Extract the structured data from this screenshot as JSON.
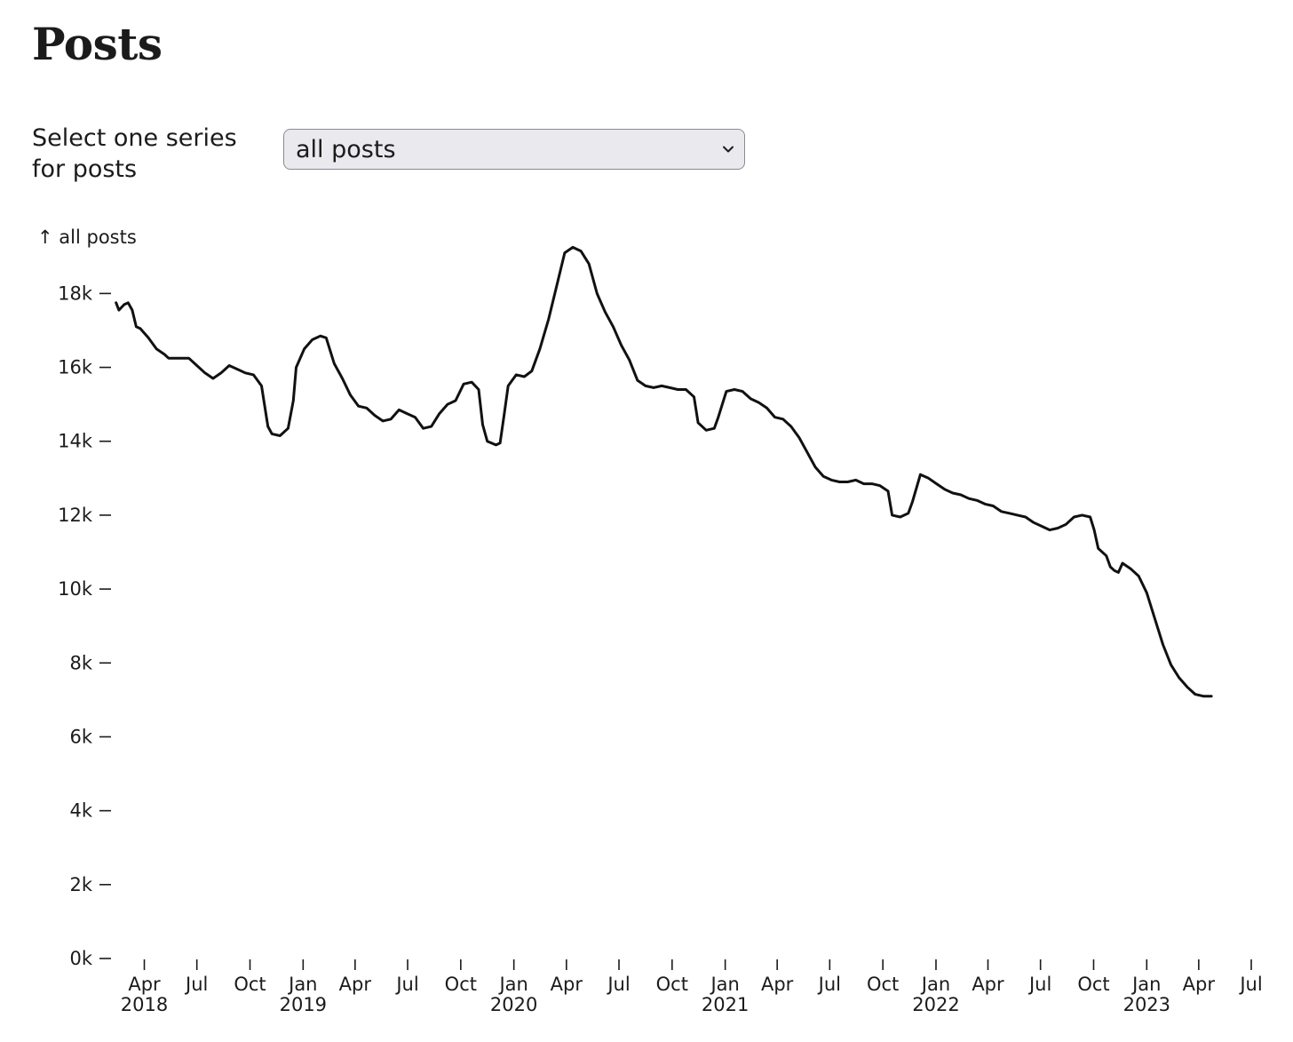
{
  "header": {
    "title": "Posts"
  },
  "controls": {
    "select_label": "Select one series for posts",
    "selected": "all posts"
  },
  "colors": {
    "line": "#111111",
    "text": "#1b1b1b",
    "select_bg": "#e9e9ee",
    "select_border": "#8a8a90"
  },
  "chart_data": {
    "type": "line",
    "ylabel": "↑ all posts",
    "ylim": [
      0,
      19500
    ],
    "yticks": [
      0,
      2000,
      4000,
      6000,
      8000,
      10000,
      12000,
      14000,
      16000,
      18000
    ],
    "ytick_labels": [
      "0k",
      "2k",
      "4k",
      "6k",
      "8k",
      "10k",
      "12k",
      "14k",
      "16k",
      "18k"
    ],
    "xlim": [
      "2018-02-10",
      "2023-07-01"
    ],
    "xticks": [
      {
        "date": "2018-04-01",
        "label": "Apr",
        "year": "2018"
      },
      {
        "date": "2018-07-01",
        "label": "Jul",
        "year": ""
      },
      {
        "date": "2018-10-01",
        "label": "Oct",
        "year": ""
      },
      {
        "date": "2019-01-01",
        "label": "Jan",
        "year": "2019"
      },
      {
        "date": "2019-04-01",
        "label": "Apr",
        "year": ""
      },
      {
        "date": "2019-07-01",
        "label": "Jul",
        "year": ""
      },
      {
        "date": "2019-10-01",
        "label": "Oct",
        "year": ""
      },
      {
        "date": "2020-01-01",
        "label": "Jan",
        "year": "2020"
      },
      {
        "date": "2020-04-01",
        "label": "Apr",
        "year": ""
      },
      {
        "date": "2020-07-01",
        "label": "Jul",
        "year": ""
      },
      {
        "date": "2020-10-01",
        "label": "Oct",
        "year": ""
      },
      {
        "date": "2021-01-01",
        "label": "Jan",
        "year": "2021"
      },
      {
        "date": "2021-04-01",
        "label": "Apr",
        "year": ""
      },
      {
        "date": "2021-07-01",
        "label": "Jul",
        "year": ""
      },
      {
        "date": "2021-10-01",
        "label": "Oct",
        "year": ""
      },
      {
        "date": "2022-01-01",
        "label": "Jan",
        "year": "2022"
      },
      {
        "date": "2022-04-01",
        "label": "Apr",
        "year": ""
      },
      {
        "date": "2022-07-01",
        "label": "Jul",
        "year": ""
      },
      {
        "date": "2022-10-01",
        "label": "Oct",
        "year": ""
      },
      {
        "date": "2023-01-01",
        "label": "Jan",
        "year": "2023"
      },
      {
        "date": "2023-04-01",
        "label": "Apr",
        "year": ""
      },
      {
        "date": "2023-07-01",
        "label": "Jul",
        "year": ""
      }
    ],
    "series": [
      {
        "color": "#111111",
        "points": [
          [
            "2018-02-11",
            17750
          ],
          [
            "2018-02-16",
            17550
          ],
          [
            "2018-02-25",
            17700
          ],
          [
            "2018-03-04",
            17750
          ],
          [
            "2018-03-11",
            17550
          ],
          [
            "2018-03-18",
            17100
          ],
          [
            "2018-03-25",
            17050
          ],
          [
            "2018-04-08",
            16800
          ],
          [
            "2018-04-22",
            16500
          ],
          [
            "2018-05-06",
            16350
          ],
          [
            "2018-05-13",
            16250
          ],
          [
            "2018-06-01",
            16250
          ],
          [
            "2018-06-17",
            16250
          ],
          [
            "2018-07-01",
            16050
          ],
          [
            "2018-07-15",
            15850
          ],
          [
            "2018-07-29",
            15700
          ],
          [
            "2018-08-12",
            15850
          ],
          [
            "2018-08-26",
            16050
          ],
          [
            "2018-09-09",
            15950
          ],
          [
            "2018-09-23",
            15850
          ],
          [
            "2018-10-07",
            15800
          ],
          [
            "2018-10-21",
            15500
          ],
          [
            "2018-11-01",
            14400
          ],
          [
            "2018-11-08",
            14200
          ],
          [
            "2018-11-22",
            14150
          ],
          [
            "2018-12-06",
            14350
          ],
          [
            "2018-12-15",
            15100
          ],
          [
            "2018-12-20",
            16000
          ],
          [
            "2019-01-03",
            16500
          ],
          [
            "2019-01-17",
            16750
          ],
          [
            "2019-01-31",
            16850
          ],
          [
            "2019-02-10",
            16800
          ],
          [
            "2019-02-24",
            16100
          ],
          [
            "2019-03-10",
            15700
          ],
          [
            "2019-03-24",
            15250
          ],
          [
            "2019-04-07",
            14950
          ],
          [
            "2019-04-21",
            14900
          ],
          [
            "2019-05-05",
            14700
          ],
          [
            "2019-05-19",
            14550
          ],
          [
            "2019-06-02",
            14600
          ],
          [
            "2019-06-16",
            14850
          ],
          [
            "2019-06-30",
            14750
          ],
          [
            "2019-07-14",
            14650
          ],
          [
            "2019-07-28",
            14350
          ],
          [
            "2019-08-11",
            14400
          ],
          [
            "2019-08-25",
            14750
          ],
          [
            "2019-09-08",
            15000
          ],
          [
            "2019-09-22",
            15100
          ],
          [
            "2019-10-06",
            15550
          ],
          [
            "2019-10-20",
            15600
          ],
          [
            "2019-11-01",
            15400
          ],
          [
            "2019-11-08",
            14450
          ],
          [
            "2019-11-16",
            14000
          ],
          [
            "2019-12-01",
            13900
          ],
          [
            "2019-12-08",
            13950
          ],
          [
            "2019-12-15",
            14700
          ],
          [
            "2019-12-22",
            15500
          ],
          [
            "2020-01-05",
            15800
          ],
          [
            "2020-01-19",
            15750
          ],
          [
            "2020-02-01",
            15900
          ],
          [
            "2020-02-15",
            16500
          ],
          [
            "2020-03-01",
            17300
          ],
          [
            "2020-03-15",
            18200
          ],
          [
            "2020-03-29",
            19100
          ],
          [
            "2020-04-12",
            19250
          ],
          [
            "2020-04-26",
            19150
          ],
          [
            "2020-05-10",
            18800
          ],
          [
            "2020-05-24",
            18000
          ],
          [
            "2020-06-07",
            17500
          ],
          [
            "2020-06-21",
            17100
          ],
          [
            "2020-07-05",
            16600
          ],
          [
            "2020-07-19",
            16200
          ],
          [
            "2020-08-02",
            15650
          ],
          [
            "2020-08-16",
            15500
          ],
          [
            "2020-08-30",
            15450
          ],
          [
            "2020-09-13",
            15500
          ],
          [
            "2020-09-27",
            15450
          ],
          [
            "2020-10-11",
            15400
          ],
          [
            "2020-10-25",
            15400
          ],
          [
            "2020-11-08",
            15200
          ],
          [
            "2020-11-15",
            14500
          ],
          [
            "2020-11-29",
            14300
          ],
          [
            "2020-12-13",
            14350
          ],
          [
            "2020-12-20",
            14650
          ],
          [
            "2021-01-03",
            15350
          ],
          [
            "2021-01-17",
            15400
          ],
          [
            "2021-01-31",
            15350
          ],
          [
            "2021-02-14",
            15150
          ],
          [
            "2021-02-28",
            15050
          ],
          [
            "2021-03-14",
            14900
          ],
          [
            "2021-03-28",
            14650
          ],
          [
            "2021-04-11",
            14600
          ],
          [
            "2021-04-25",
            14400
          ],
          [
            "2021-05-09",
            14100
          ],
          [
            "2021-05-23",
            13700
          ],
          [
            "2021-06-06",
            13300
          ],
          [
            "2021-06-20",
            13050
          ],
          [
            "2021-07-04",
            12950
          ],
          [
            "2021-07-18",
            12900
          ],
          [
            "2021-08-01",
            12900
          ],
          [
            "2021-08-15",
            12950
          ],
          [
            "2021-08-29",
            12850
          ],
          [
            "2021-09-12",
            12850
          ],
          [
            "2021-09-26",
            12800
          ],
          [
            "2021-10-10",
            12650
          ],
          [
            "2021-10-17",
            12000
          ],
          [
            "2021-10-31",
            11950
          ],
          [
            "2021-11-14",
            12050
          ],
          [
            "2021-11-21",
            12350
          ],
          [
            "2021-12-05",
            13100
          ],
          [
            "2021-12-19",
            13000
          ],
          [
            "2022-01-02",
            12850
          ],
          [
            "2022-01-16",
            12700
          ],
          [
            "2022-01-30",
            12600
          ],
          [
            "2022-02-13",
            12550
          ],
          [
            "2022-02-27",
            12450
          ],
          [
            "2022-03-13",
            12400
          ],
          [
            "2022-03-27",
            12300
          ],
          [
            "2022-04-10",
            12250
          ],
          [
            "2022-04-24",
            12100
          ],
          [
            "2022-05-08",
            12050
          ],
          [
            "2022-05-22",
            12000
          ],
          [
            "2022-06-05",
            11950
          ],
          [
            "2022-06-19",
            11800
          ],
          [
            "2022-07-03",
            11700
          ],
          [
            "2022-07-17",
            11600
          ],
          [
            "2022-07-31",
            11650
          ],
          [
            "2022-08-14",
            11750
          ],
          [
            "2022-08-28",
            11950
          ],
          [
            "2022-09-11",
            12000
          ],
          [
            "2022-09-25",
            11950
          ],
          [
            "2022-10-02",
            11600
          ],
          [
            "2022-10-09",
            11100
          ],
          [
            "2022-10-23",
            10900
          ],
          [
            "2022-10-30",
            10600
          ],
          [
            "2022-11-06",
            10500
          ],
          [
            "2022-11-13",
            10450
          ],
          [
            "2022-11-20",
            10700
          ],
          [
            "2022-12-04",
            10550
          ],
          [
            "2022-12-18",
            10350
          ],
          [
            "2023-01-01",
            9900
          ],
          [
            "2023-01-15",
            9200
          ],
          [
            "2023-01-29",
            8500
          ],
          [
            "2023-02-12",
            7950
          ],
          [
            "2023-02-26",
            7600
          ],
          [
            "2023-03-12",
            7350
          ],
          [
            "2023-03-26",
            7150
          ],
          [
            "2023-04-09",
            7100
          ],
          [
            "2023-04-23",
            7100
          ]
        ]
      }
    ]
  }
}
